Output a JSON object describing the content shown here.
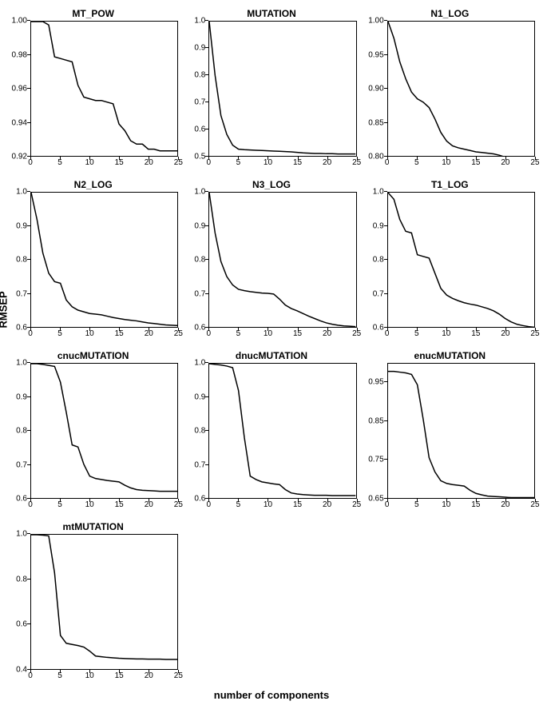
{
  "global": {
    "ylabel": "RMSEP",
    "xlabel": "number of components",
    "line_color": "#000000",
    "line_width": 1.5,
    "background_color": "#ffffff",
    "border_color": "#000000",
    "title_fontsize": 12,
    "tick_fontsize": 10,
    "label_fontsize": 13
  },
  "panels": [
    {
      "title": "MT_POW",
      "xlim": [
        0,
        25
      ],
      "xticks": [
        0,
        5,
        10,
        15,
        20,
        25
      ],
      "ylim": [
        0.92,
        1.0
      ],
      "yticks": [
        0.92,
        0.94,
        0.96,
        0.98,
        1.0
      ],
      "ytick_labels": [
        "0.92",
        "0.94",
        "0.96",
        "0.98",
        "1.00"
      ],
      "data": [
        [
          0,
          1.0
        ],
        [
          1,
          1.0
        ],
        [
          2,
          1.0
        ],
        [
          3,
          0.998
        ],
        [
          4,
          0.979
        ],
        [
          5,
          0.978
        ],
        [
          6,
          0.977
        ],
        [
          7,
          0.976
        ],
        [
          8,
          0.962
        ],
        [
          9,
          0.955
        ],
        [
          10,
          0.954
        ],
        [
          11,
          0.953
        ],
        [
          12,
          0.953
        ],
        [
          13,
          0.952
        ],
        [
          14,
          0.951
        ],
        [
          15,
          0.939
        ],
        [
          16,
          0.935
        ],
        [
          17,
          0.929
        ],
        [
          18,
          0.927
        ],
        [
          19,
          0.927
        ],
        [
          20,
          0.924
        ],
        [
          21,
          0.924
        ],
        [
          22,
          0.923
        ],
        [
          23,
          0.923
        ],
        [
          24,
          0.923
        ],
        [
          25,
          0.923
        ]
      ]
    },
    {
      "title": "MUTATION",
      "xlim": [
        0,
        25
      ],
      "xticks": [
        0,
        5,
        10,
        15,
        20,
        25
      ],
      "ylim": [
        0.5,
        1.0
      ],
      "yticks": [
        0.5,
        0.6,
        0.7,
        0.8,
        0.9,
        1.0
      ],
      "ytick_labels": [
        "0.5",
        "0.6",
        "0.7",
        "0.8",
        "0.9",
        "1.0"
      ],
      "data": [
        [
          0,
          1.0
        ],
        [
          1,
          0.8
        ],
        [
          2,
          0.65
        ],
        [
          3,
          0.58
        ],
        [
          4,
          0.54
        ],
        [
          5,
          0.525
        ],
        [
          6,
          0.523
        ],
        [
          7,
          0.522
        ],
        [
          8,
          0.521
        ],
        [
          9,
          0.52
        ],
        [
          10,
          0.519
        ],
        [
          11,
          0.518
        ],
        [
          12,
          0.517
        ],
        [
          13,
          0.516
        ],
        [
          14,
          0.515
        ],
        [
          15,
          0.513
        ],
        [
          16,
          0.511
        ],
        [
          17,
          0.51
        ],
        [
          18,
          0.509
        ],
        [
          19,
          0.509
        ],
        [
          20,
          0.508
        ],
        [
          21,
          0.508
        ],
        [
          22,
          0.507
        ],
        [
          23,
          0.507
        ],
        [
          24,
          0.507
        ],
        [
          25,
          0.507
        ]
      ]
    },
    {
      "title": "N1_LOG",
      "xlim": [
        0,
        25
      ],
      "xticks": [
        0,
        5,
        10,
        15,
        20,
        25
      ],
      "ylim": [
        0.8,
        1.0
      ],
      "yticks": [
        0.8,
        0.85,
        0.9,
        0.95,
        1.0
      ],
      "ytick_labels": [
        "0.80",
        "0.85",
        "0.90",
        "0.95",
        "1.00"
      ],
      "data": [
        [
          0,
          1.0
        ],
        [
          1,
          0.975
        ],
        [
          2,
          0.94
        ],
        [
          3,
          0.915
        ],
        [
          4,
          0.895
        ],
        [
          5,
          0.885
        ],
        [
          6,
          0.88
        ],
        [
          7,
          0.872
        ],
        [
          8,
          0.855
        ],
        [
          9,
          0.835
        ],
        [
          10,
          0.822
        ],
        [
          11,
          0.815
        ],
        [
          12,
          0.812
        ],
        [
          13,
          0.81
        ],
        [
          14,
          0.808
        ],
        [
          15,
          0.806
        ],
        [
          16,
          0.805
        ],
        [
          17,
          0.804
        ],
        [
          18,
          0.803
        ],
        [
          19,
          0.801
        ],
        [
          20,
          0.798
        ],
        [
          21,
          0.796
        ],
        [
          22,
          0.795
        ],
        [
          23,
          0.794
        ],
        [
          24,
          0.793
        ],
        [
          25,
          0.793
        ]
      ]
    },
    {
      "title": "N2_LOG",
      "xlim": [
        0,
        25
      ],
      "xticks": [
        0,
        5,
        10,
        15,
        20,
        25
      ],
      "ylim": [
        0.6,
        1.0
      ],
      "yticks": [
        0.6,
        0.7,
        0.8,
        0.9,
        1.0
      ],
      "ytick_labels": [
        "0.6",
        "0.7",
        "0.8",
        "0.9",
        "1.0"
      ],
      "data": [
        [
          0,
          1.0
        ],
        [
          1,
          0.92
        ],
        [
          2,
          0.82
        ],
        [
          3,
          0.76
        ],
        [
          4,
          0.735
        ],
        [
          5,
          0.73
        ],
        [
          6,
          0.68
        ],
        [
          7,
          0.66
        ],
        [
          8,
          0.65
        ],
        [
          9,
          0.645
        ],
        [
          10,
          0.64
        ],
        [
          11,
          0.638
        ],
        [
          12,
          0.636
        ],
        [
          13,
          0.632
        ],
        [
          14,
          0.628
        ],
        [
          15,
          0.625
        ],
        [
          16,
          0.622
        ],
        [
          17,
          0.62
        ],
        [
          18,
          0.618
        ],
        [
          19,
          0.615
        ],
        [
          20,
          0.612
        ],
        [
          21,
          0.61
        ],
        [
          22,
          0.608
        ],
        [
          23,
          0.606
        ],
        [
          24,
          0.605
        ],
        [
          25,
          0.604
        ]
      ]
    },
    {
      "title": "N3_LOG",
      "xlim": [
        0,
        25
      ],
      "xticks": [
        0,
        5,
        10,
        15,
        20,
        25
      ],
      "ylim": [
        0.6,
        1.0
      ],
      "yticks": [
        0.6,
        0.7,
        0.8,
        0.9,
        1.0
      ],
      "ytick_labels": [
        "0.6",
        "0.7",
        "0.8",
        "0.9",
        "1.0"
      ],
      "data": [
        [
          0,
          1.0
        ],
        [
          1,
          0.88
        ],
        [
          2,
          0.795
        ],
        [
          3,
          0.75
        ],
        [
          4,
          0.725
        ],
        [
          5,
          0.712
        ],
        [
          6,
          0.708
        ],
        [
          7,
          0.705
        ],
        [
          8,
          0.703
        ],
        [
          9,
          0.701
        ],
        [
          10,
          0.7
        ],
        [
          11,
          0.698
        ],
        [
          12,
          0.683
        ],
        [
          13,
          0.665
        ],
        [
          14,
          0.655
        ],
        [
          15,
          0.648
        ],
        [
          16,
          0.64
        ],
        [
          17,
          0.632
        ],
        [
          18,
          0.625
        ],
        [
          19,
          0.618
        ],
        [
          20,
          0.612
        ],
        [
          21,
          0.608
        ],
        [
          22,
          0.605
        ],
        [
          23,
          0.603
        ],
        [
          24,
          0.602
        ],
        [
          25,
          0.601
        ]
      ]
    },
    {
      "title": "T1_LOG",
      "xlim": [
        0,
        25
      ],
      "xticks": [
        0,
        5,
        10,
        15,
        20,
        25
      ],
      "ylim": [
        0.6,
        1.0
      ],
      "yticks": [
        0.6,
        0.7,
        0.8,
        0.9,
        1.0
      ],
      "ytick_labels": [
        "0.6",
        "0.7",
        "0.8",
        "0.9",
        "1.0"
      ],
      "data": [
        [
          0,
          1.0
        ],
        [
          1,
          0.98
        ],
        [
          2,
          0.92
        ],
        [
          3,
          0.885
        ],
        [
          4,
          0.88
        ],
        [
          5,
          0.815
        ],
        [
          6,
          0.81
        ],
        [
          7,
          0.805
        ],
        [
          8,
          0.76
        ],
        [
          9,
          0.715
        ],
        [
          10,
          0.695
        ],
        [
          11,
          0.685
        ],
        [
          12,
          0.678
        ],
        [
          13,
          0.672
        ],
        [
          14,
          0.668
        ],
        [
          15,
          0.665
        ],
        [
          16,
          0.66
        ],
        [
          17,
          0.655
        ],
        [
          18,
          0.648
        ],
        [
          19,
          0.638
        ],
        [
          20,
          0.625
        ],
        [
          21,
          0.615
        ],
        [
          22,
          0.608
        ],
        [
          23,
          0.604
        ],
        [
          24,
          0.601
        ],
        [
          25,
          0.599
        ]
      ]
    },
    {
      "title": "cnucMUTATION",
      "xlim": [
        0,
        25
      ],
      "xticks": [
        0,
        5,
        10,
        15,
        20,
        25
      ],
      "ylim": [
        0.6,
        1.0
      ],
      "yticks": [
        0.6,
        0.7,
        0.8,
        0.9,
        1.0
      ],
      "ytick_labels": [
        "0.6",
        "0.7",
        "0.8",
        "0.9",
        "1.0"
      ],
      "data": [
        [
          0,
          1.0
        ],
        [
          1,
          1.0
        ],
        [
          2,
          0.998
        ],
        [
          3,
          0.995
        ],
        [
          4,
          0.992
        ],
        [
          5,
          0.945
        ],
        [
          6,
          0.855
        ],
        [
          7,
          0.758
        ],
        [
          8,
          0.752
        ],
        [
          9,
          0.7
        ],
        [
          10,
          0.665
        ],
        [
          11,
          0.658
        ],
        [
          12,
          0.655
        ],
        [
          13,
          0.652
        ],
        [
          14,
          0.65
        ],
        [
          15,
          0.648
        ],
        [
          16,
          0.638
        ],
        [
          17,
          0.63
        ],
        [
          18,
          0.625
        ],
        [
          19,
          0.623
        ],
        [
          20,
          0.622
        ],
        [
          21,
          0.621
        ],
        [
          22,
          0.62
        ],
        [
          23,
          0.62
        ],
        [
          24,
          0.62
        ],
        [
          25,
          0.62
        ]
      ]
    },
    {
      "title": "dnucMUTATION",
      "xlim": [
        0,
        25
      ],
      "xticks": [
        0,
        5,
        10,
        15,
        20,
        25
      ],
      "ylim": [
        0.6,
        1.0
      ],
      "yticks": [
        0.6,
        0.7,
        0.8,
        0.9,
        1.0
      ],
      "ytick_labels": [
        "0.6",
        "0.7",
        "0.8",
        "0.9",
        "1.0"
      ],
      "data": [
        [
          0,
          1.0
        ],
        [
          1,
          0.998
        ],
        [
          2,
          0.996
        ],
        [
          3,
          0.993
        ],
        [
          4,
          0.988
        ],
        [
          5,
          0.92
        ],
        [
          6,
          0.78
        ],
        [
          7,
          0.665
        ],
        [
          8,
          0.655
        ],
        [
          9,
          0.648
        ],
        [
          10,
          0.645
        ],
        [
          11,
          0.642
        ],
        [
          12,
          0.64
        ],
        [
          13,
          0.625
        ],
        [
          14,
          0.615
        ],
        [
          15,
          0.612
        ],
        [
          16,
          0.61
        ],
        [
          17,
          0.609
        ],
        [
          18,
          0.608
        ],
        [
          19,
          0.608
        ],
        [
          20,
          0.608
        ],
        [
          21,
          0.607
        ],
        [
          22,
          0.607
        ],
        [
          23,
          0.607
        ],
        [
          24,
          0.607
        ],
        [
          25,
          0.607
        ]
      ]
    },
    {
      "title": "enucMUTATION",
      "xlim": [
        0,
        25
      ],
      "xticks": [
        0,
        5,
        10,
        15,
        20,
        25
      ],
      "ylim": [
        0.65,
        1.0
      ],
      "yticks": [
        0.65,
        0.75,
        0.85,
        0.95
      ],
      "ytick_labels": [
        "0.65",
        "0.75",
        "0.85",
        "0.95"
      ],
      "data": [
        [
          0,
          0.98
        ],
        [
          1,
          0.98
        ],
        [
          2,
          0.978
        ],
        [
          3,
          0.976
        ],
        [
          4,
          0.972
        ],
        [
          5,
          0.945
        ],
        [
          6,
          0.855
        ],
        [
          7,
          0.755
        ],
        [
          8,
          0.718
        ],
        [
          9,
          0.695
        ],
        [
          10,
          0.688
        ],
        [
          11,
          0.685
        ],
        [
          12,
          0.683
        ],
        [
          13,
          0.681
        ],
        [
          14,
          0.67
        ],
        [
          15,
          0.662
        ],
        [
          16,
          0.658
        ],
        [
          17,
          0.655
        ],
        [
          18,
          0.654
        ],
        [
          19,
          0.653
        ],
        [
          20,
          0.652
        ],
        [
          21,
          0.651
        ],
        [
          22,
          0.651
        ],
        [
          23,
          0.651
        ],
        [
          24,
          0.651
        ],
        [
          25,
          0.651
        ]
      ]
    },
    {
      "title": "mtMUTATION",
      "xlim": [
        0,
        25
      ],
      "xticks": [
        0,
        5,
        10,
        15,
        20,
        25
      ],
      "ylim": [
        0.4,
        1.0
      ],
      "yticks": [
        0.4,
        0.6,
        0.8,
        1.0
      ],
      "ytick_labels": [
        "0.4",
        "0.6",
        "0.8",
        "1.0"
      ],
      "data": [
        [
          0,
          1.0
        ],
        [
          1,
          1.0
        ],
        [
          2,
          0.998
        ],
        [
          3,
          0.995
        ],
        [
          4,
          0.83
        ],
        [
          5,
          0.55
        ],
        [
          6,
          0.515
        ],
        [
          7,
          0.51
        ],
        [
          8,
          0.505
        ],
        [
          9,
          0.498
        ],
        [
          10,
          0.48
        ],
        [
          11,
          0.458
        ],
        [
          12,
          0.455
        ],
        [
          13,
          0.452
        ],
        [
          14,
          0.45
        ],
        [
          15,
          0.448
        ],
        [
          16,
          0.447
        ],
        [
          17,
          0.446
        ],
        [
          18,
          0.445
        ],
        [
          19,
          0.445
        ],
        [
          20,
          0.444
        ],
        [
          21,
          0.444
        ],
        [
          22,
          0.444
        ],
        [
          23,
          0.443
        ],
        [
          24,
          0.443
        ],
        [
          25,
          0.443
        ]
      ]
    }
  ]
}
